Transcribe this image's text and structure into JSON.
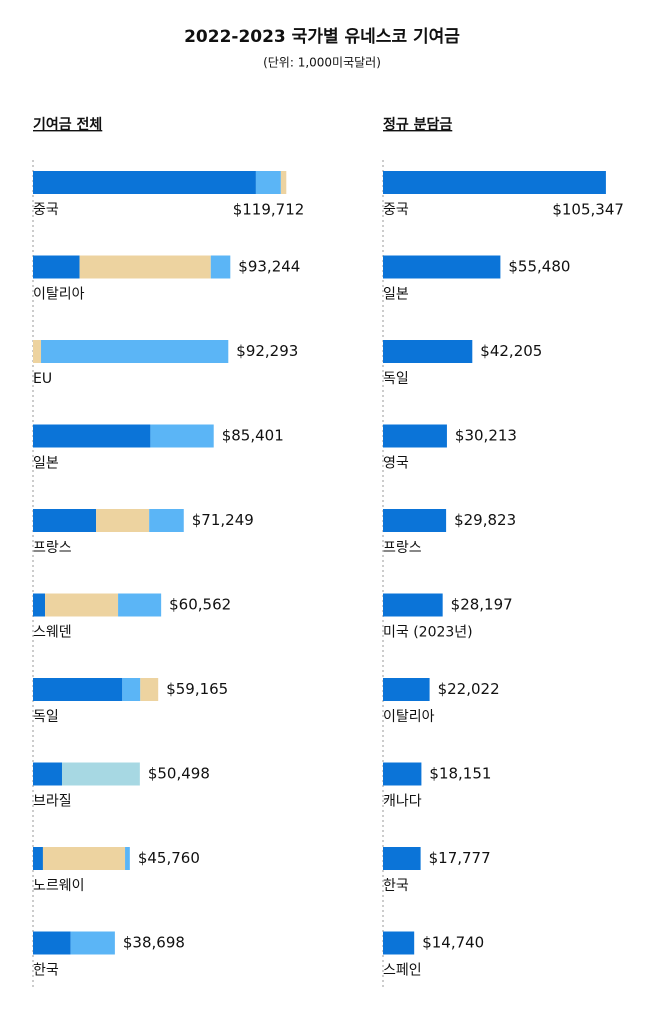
{
  "title": "2022-2023 국가별 유네스코 기여금",
  "subtitle": "(단위: 1,000미국달러)",
  "chart_data": [
    {
      "type": "bar",
      "stacked": true,
      "orientation": "horizontal",
      "title": "기여금 전체",
      "xlim": [
        0,
        125000
      ],
      "categories": [
        "중국",
        "이탈리아",
        "EU",
        "일본",
        "프랑스",
        "스웨덴",
        "독일",
        "브라질",
        "노르웨이",
        "한국"
      ],
      "series": [
        {
          "color": "#0b74d8",
          "values": [
            105347,
            22022,
            0,
            55480,
            29823,
            5700,
            42205,
            13700,
            4700,
            17777
          ]
        },
        {
          "color": "#5bb5f6",
          "values": [
            11800,
            0,
            0,
            0,
            0,
            0,
            8500,
            0,
            0,
            0
          ]
        },
        {
          "color": "#edd3a0",
          "values": [
            2565,
            62000,
            3793,
            0,
            25070,
            34500,
            8460,
            0,
            38800,
            0
          ]
        },
        {
          "color": "#5bb5f6",
          "values": [
            0,
            9222,
            88500,
            29921,
            16356,
            20362,
            0,
            0,
            2260,
            20921
          ]
        },
        {
          "color": "#a7d8e3",
          "values": [
            0,
            0,
            0,
            0,
            0,
            0,
            0,
            36798,
            0,
            0
          ]
        }
      ],
      "totals": [
        119712,
        93244,
        92293,
        85401,
        71249,
        60562,
        59165,
        50498,
        45760,
        38698
      ],
      "total_labels": [
        "$119,712",
        "$93,244",
        "$92,293",
        "$85,401",
        "$71,249",
        "$60,562",
        "$59,165",
        "$50,498",
        "$45,760",
        "$38,698"
      ]
    },
    {
      "type": "bar",
      "orientation": "horizontal",
      "title": "정규 분담금",
      "xlim": [
        0,
        125000
      ],
      "categories": [
        "중국",
        "일본",
        "독일",
        "영국",
        "프랑스",
        "미국 (2023년)",
        "이탈리아",
        "캐나다",
        "한국",
        "스페인"
      ],
      "color": "#0b74d8",
      "values": [
        105347,
        55480,
        42205,
        30213,
        29823,
        28197,
        22022,
        18151,
        17777,
        14740
      ],
      "value_labels": [
        "$105,347",
        "$55,480",
        "$42,205",
        "$30,213",
        "$29,823",
        "$28,197",
        "$22,022",
        "$18,151",
        "$17,777",
        "$14,740"
      ]
    }
  ]
}
